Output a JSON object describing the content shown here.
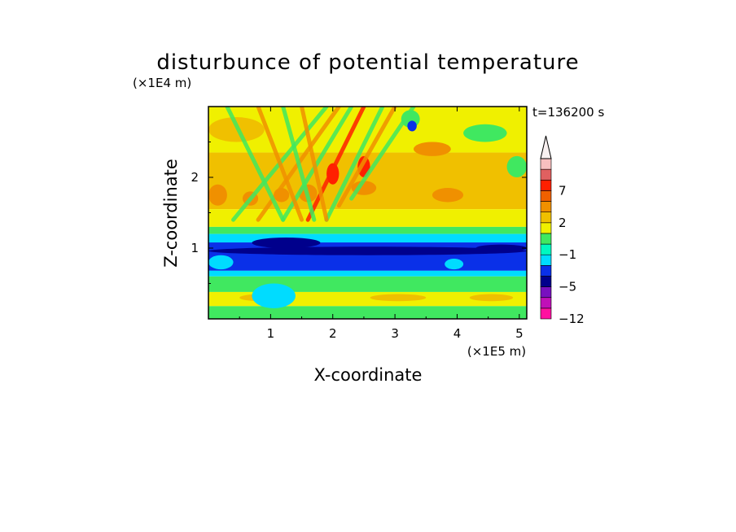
{
  "chart_data": {
    "type": "heatmap",
    "title": "disturbunce of potential temperature",
    "xlabel": "X-coordinate",
    "ylabel": "Z-coordinate",
    "x_unit": "(×1E5 m)",
    "y_unit": "(×1E4 m)",
    "time_label": "t=136200 s",
    "xlim": [
      0,
      5.12
    ],
    "ylim": [
      0,
      3.0
    ],
    "x_ticks": [
      1,
      2,
      3,
      4,
      5
    ],
    "y_ticks": [
      1,
      2
    ],
    "x_tick_labels": [
      "1",
      "2",
      "3",
      "4",
      "5"
    ],
    "y_tick_labels": [
      "1",
      "2"
    ],
    "colorbar": {
      "levels": [
        -12,
        -10,
        -8,
        -5,
        -3,
        -2,
        -1,
        0,
        1,
        2,
        3,
        5,
        7,
        9,
        11
      ],
      "labels": [
        {
          "value": -12,
          "text": "−12"
        },
        {
          "value": -5,
          "text": "−5"
        },
        {
          "value": -1,
          "text": "−1"
        },
        {
          "value": 2,
          "text": "2"
        },
        {
          "value": 7,
          "text": "7"
        }
      ],
      "colors": [
        "#ff10a0",
        "#c010b8",
        "#7810c0",
        "#00008c",
        "#0a30e8",
        "#00dcff",
        "#00f8c0",
        "#40e860",
        "#f0f000",
        "#f0c000",
        "#f09000",
        "#f06000",
        "#ff2000",
        "#e06060",
        "#f8c0c0"
      ],
      "extend_top": true,
      "extend_top_color": "#f8f0f0"
    },
    "bands": [
      {
        "z": [
          2.35,
          3.0
        ],
        "color": "#f0f000"
      },
      {
        "z": [
          1.55,
          2.35
        ],
        "color": "#f0c000"
      },
      {
        "z": [
          1.3,
          1.55
        ],
        "color": "#f0f000"
      },
      {
        "z": [
          1.2,
          1.3
        ],
        "color": "#40e860"
      },
      {
        "z": [
          1.08,
          1.2
        ],
        "color": "#00dcff"
      },
      {
        "z": [
          0.68,
          1.08
        ],
        "color": "#0a30e8"
      },
      {
        "z": [
          0.6,
          0.68
        ],
        "color": "#00dcff"
      },
      {
        "z": [
          0.38,
          0.6
        ],
        "color": "#40e860"
      },
      {
        "z": [
          0.18,
          0.38
        ],
        "color": "#f0f000"
      },
      {
        "z": [
          0,
          0.18
        ],
        "color": "#40e860"
      }
    ],
    "features": [
      {
        "x": [
          0.0,
          5.12
        ],
        "z": [
          0.9,
          1.02
        ],
        "color": "#00008c"
      },
      {
        "x": [
          0.7,
          1.8
        ],
        "z": [
          1.0,
          1.15
        ],
        "color": "#00008c"
      },
      {
        "x": [
          4.3,
          5.12
        ],
        "z": [
          0.95,
          1.05
        ],
        "color": "#00008c"
      },
      {
        "x": [
          0.0,
          0.9
        ],
        "z": [
          2.5,
          2.85
        ],
        "color": "#f0c000"
      },
      {
        "x": [
          3.3,
          3.9
        ],
        "z": [
          2.3,
          2.5
        ],
        "color": "#f09000"
      },
      {
        "x": [
          4.1,
          4.8
        ],
        "z": [
          2.5,
          2.75
        ],
        "color": "#40e860"
      },
      {
        "x": [
          3.1,
          3.4
        ],
        "z": [
          2.7,
          2.95
        ],
        "color": "#40e860"
      },
      {
        "x": [
          4.8,
          5.12
        ],
        "z": [
          2.0,
          2.3
        ],
        "color": "#40e860"
      },
      {
        "x": [
          3.2,
          3.35
        ],
        "z": [
          2.65,
          2.8
        ],
        "color": "#0a30e8"
      },
      {
        "x": [
          0.0,
          0.3
        ],
        "z": [
          1.6,
          1.9
        ],
        "color": "#f09000"
      },
      {
        "x": [
          0.55,
          0.8
        ],
        "z": [
          1.6,
          1.8
        ],
        "color": "#f09000"
      },
      {
        "x": [
          1.05,
          1.3
        ],
        "z": [
          1.65,
          1.85
        ],
        "color": "#f09000"
      },
      {
        "x": [
          1.45,
          1.75
        ],
        "z": [
          1.65,
          1.9
        ],
        "color": "#f09000"
      },
      {
        "x": [
          2.3,
          2.7
        ],
        "z": [
          1.75,
          1.95
        ],
        "color": "#f09000"
      },
      {
        "x": [
          3.6,
          4.1
        ],
        "z": [
          1.65,
          1.85
        ],
        "color": "#f09000"
      },
      {
        "x": [
          0.0,
          5.12
        ],
        "z": [
          0.45,
          0.55
        ],
        "color": "#40e860"
      },
      {
        "x": [
          0.5,
          1.2
        ],
        "z": [
          0.25,
          0.35
        ],
        "color": "#f0c000"
      },
      {
        "x": [
          2.6,
          3.5
        ],
        "z": [
          0.25,
          0.35
        ],
        "color": "#f0c000"
      },
      {
        "x": [
          4.2,
          4.9
        ],
        "z": [
          0.25,
          0.35
        ],
        "color": "#f0c000"
      },
      {
        "x": [
          0.7,
          1.4
        ],
        "z": [
          0.15,
          0.5
        ],
        "color": "#00dcff"
      },
      {
        "x": [
          0.0,
          0.4
        ],
        "z": [
          0.7,
          0.9
        ],
        "color": "#00dcff"
      },
      {
        "x": [
          3.8,
          4.1
        ],
        "z": [
          0.7,
          0.85
        ],
        "color": "#00dcff"
      },
      {
        "x": [
          2.4,
          2.6
        ],
        "z": [
          2.0,
          2.3
        ],
        "color": "#ff2000"
      },
      {
        "x": [
          1.9,
          2.1
        ],
        "z": [
          1.9,
          2.2
        ],
        "color": "#ff2000"
      }
    ],
    "wave_rays": [
      {
        "x0": 0.4,
        "x1": 1.9,
        "z0": 1.4,
        "z1": 3.0,
        "color": "#40e860"
      },
      {
        "x0": 0.8,
        "x1": 2.1,
        "z0": 1.4,
        "z1": 3.0,
        "color": "#f09000"
      },
      {
        "x0": 1.2,
        "x1": 2.3,
        "z0": 1.4,
        "z1": 3.0,
        "color": "#40e860"
      },
      {
        "x0": 1.6,
        "x1": 2.5,
        "z0": 1.4,
        "z1": 3.0,
        "color": "#ff2000"
      },
      {
        "x0": 1.9,
        "x1": 2.8,
        "z0": 1.4,
        "z1": 3.0,
        "color": "#40e860"
      },
      {
        "x0": 2.1,
        "x1": 3.0,
        "z0": 1.6,
        "z1": 3.0,
        "color": "#f09000"
      },
      {
        "x0": 2.3,
        "x1": 3.3,
        "z0": 1.7,
        "z1": 3.0,
        "color": "#40e860"
      },
      {
        "x0": 1.2,
        "x1": 0.3,
        "z0": 1.4,
        "z1": 3.0,
        "color": "#40e860"
      },
      {
        "x0": 1.5,
        "x1": 0.8,
        "z0": 1.4,
        "z1": 3.0,
        "color": "#f09000"
      },
      {
        "x0": 1.7,
        "x1": 1.2,
        "z0": 1.4,
        "z1": 3.0,
        "color": "#40e860"
      },
      {
        "x0": 1.9,
        "x1": 1.5,
        "z0": 1.4,
        "z1": 3.0,
        "color": "#f09000"
      }
    ]
  }
}
